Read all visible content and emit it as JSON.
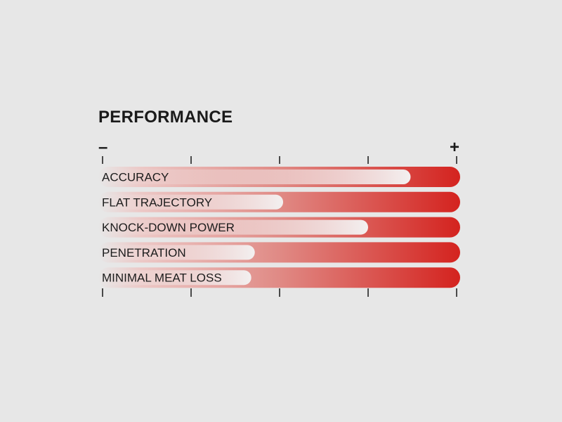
{
  "chart_data": {
    "type": "bar",
    "orientation": "horizontal",
    "title": "PERFORMANCE",
    "scale_min_label": "–",
    "scale_max_label": "+",
    "xlim": [
      0,
      1
    ],
    "tick_count": 5,
    "categories": [
      "ACCURACY",
      "FLAT TRAJECTORY",
      "KNOCK-DOWN POWER",
      "PENETRATION",
      "MINIMAL MEAT LOSS"
    ],
    "values": [
      0.87,
      0.51,
      0.75,
      0.43,
      0.42
    ],
    "grid": false,
    "colors": {
      "bar_end": "#d4231f",
      "indicator": "#f2eeee",
      "background": "#e7e7e7"
    }
  }
}
